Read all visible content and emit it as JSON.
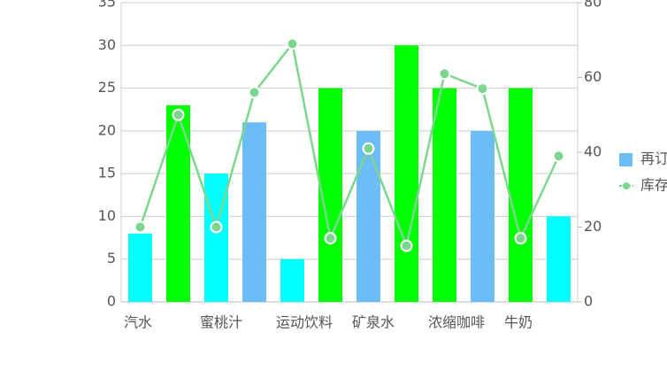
{
  "chart_data": {
    "type": "bar",
    "categories": [
      "汽水",
      null,
      "蜜桃汁",
      null,
      "运动饮料",
      null,
      "矿泉水",
      null,
      "浓缩咖啡",
      null,
      "牛奶",
      null
    ],
    "series": [
      {
        "name": "再订",
        "type": "bar",
        "color": "#6cbcf7",
        "colors": [
          "#00ffff",
          "#00ff00",
          "#00ffff",
          "#6cbcf7",
          "#00ffff",
          "#00ff00",
          "#6cbcf7",
          "#00ff00",
          "#00ff00",
          "#6cbcf7",
          "#00ff00",
          "#00ffff"
        ],
        "values": [
          8,
          23,
          15,
          21,
          5,
          25,
          20,
          30,
          25,
          20,
          25,
          10
        ]
      },
      {
        "name": "库存",
        "type": "line",
        "axis": "y2",
        "color": "#7dd68f",
        "values": [
          20,
          50,
          20,
          56,
          69,
          17,
          41,
          15,
          61,
          57,
          17,
          39
        ]
      }
    ],
    "ylim": [
      0,
      35
    ],
    "yticks": [
      0,
      5,
      10,
      15,
      20,
      25,
      30,
      35
    ],
    "y2lim": [
      0,
      80
    ],
    "y2ticks": [
      0,
      20,
      40,
      60,
      80
    ],
    "grid": true,
    "legend": "right"
  }
}
